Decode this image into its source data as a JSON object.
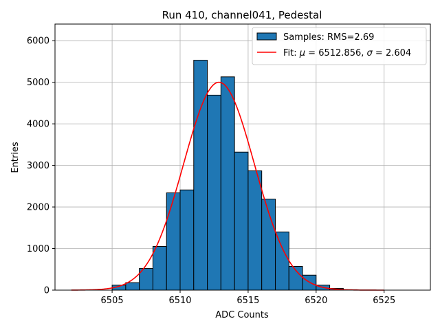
{
  "chart_data": {
    "type": "bar",
    "title": "Run 410, channel041, Pedestal",
    "xlabel": "ADC Counts",
    "ylabel": "Entries",
    "xlim": [
      6500.8,
      6528.4
    ],
    "ylim": [
      0,
      6400
    ],
    "xticks": [
      6505,
      6510,
      6515,
      6520,
      6525
    ],
    "yticks": [
      0,
      1000,
      2000,
      3000,
      4000,
      5000,
      6000
    ],
    "grid": true,
    "legend_position": "top-right",
    "histogram": {
      "name": "Samples",
      "legend_label": "Samples: RMS=2.69",
      "color": "#1f77b4",
      "edge_color": "#000000",
      "bin_width": 1,
      "bins": [
        {
          "left": 6505,
          "count": 120
        },
        {
          "left": 6506,
          "count": 180
        },
        {
          "left": 6507,
          "count": 520
        },
        {
          "left": 6508,
          "count": 1050
        },
        {
          "left": 6509,
          "count": 2340
        },
        {
          "left": 6510,
          "count": 2410
        },
        {
          "left": 6511,
          "count": 5530
        },
        {
          "left": 6512,
          "count": 4690
        },
        {
          "left": 6513,
          "count": 5130
        },
        {
          "left": 6514,
          "count": 3320
        },
        {
          "left": 6515,
          "count": 2870
        },
        {
          "left": 6516,
          "count": 2190
        },
        {
          "left": 6517,
          "count": 1400
        },
        {
          "left": 6518,
          "count": 570
        },
        {
          "left": 6519,
          "count": 360
        },
        {
          "left": 6520,
          "count": 120
        },
        {
          "left": 6521,
          "count": 40
        },
        {
          "left": 6522,
          "count": 10
        }
      ]
    },
    "fit": {
      "name": "Fit",
      "legend_prefix": "Fit: ",
      "mu_symbol": "μ",
      "sigma_symbol": "σ",
      "mu": 6512.856,
      "sigma": 2.604,
      "amplitude": 5000,
      "x_range": [
        6502,
        6525
      ],
      "color": "#ff0000"
    }
  }
}
